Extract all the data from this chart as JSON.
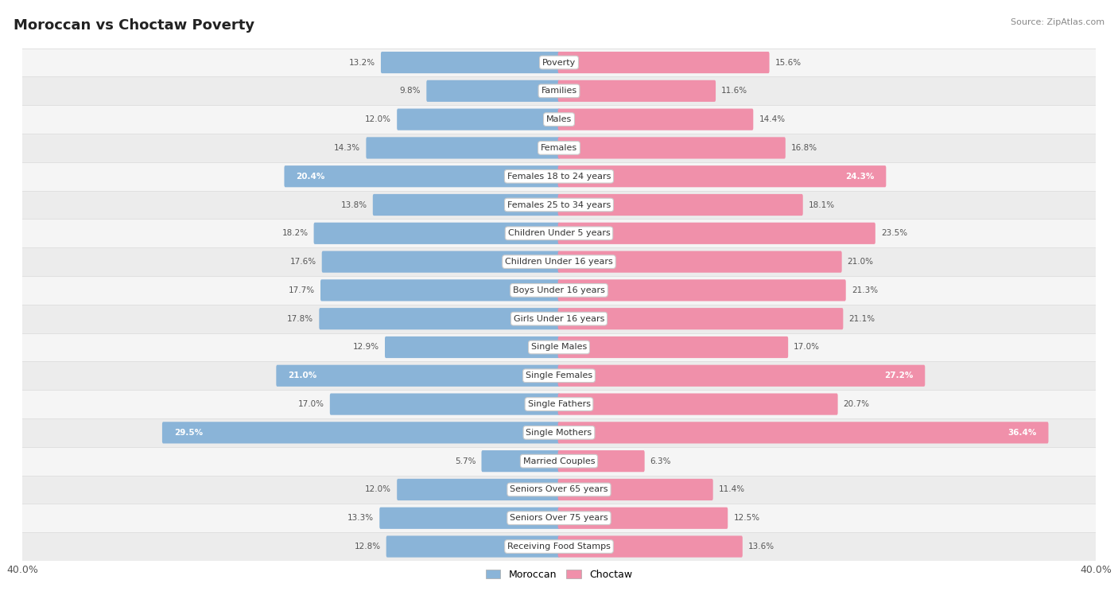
{
  "title": "Moroccan vs Choctaw Poverty",
  "source": "Source: ZipAtlas.com",
  "categories": [
    "Poverty",
    "Families",
    "Males",
    "Females",
    "Females 18 to 24 years",
    "Females 25 to 34 years",
    "Children Under 5 years",
    "Children Under 16 years",
    "Boys Under 16 years",
    "Girls Under 16 years",
    "Single Males",
    "Single Females",
    "Single Fathers",
    "Single Mothers",
    "Married Couples",
    "Seniors Over 65 years",
    "Seniors Over 75 years",
    "Receiving Food Stamps"
  ],
  "moroccan": [
    13.2,
    9.8,
    12.0,
    14.3,
    20.4,
    13.8,
    18.2,
    17.6,
    17.7,
    17.8,
    12.9,
    21.0,
    17.0,
    29.5,
    5.7,
    12.0,
    13.3,
    12.8
  ],
  "choctaw": [
    15.6,
    11.6,
    14.4,
    16.8,
    24.3,
    18.1,
    23.5,
    21.0,
    21.3,
    21.1,
    17.0,
    27.2,
    20.7,
    36.4,
    6.3,
    11.4,
    12.5,
    13.6
  ],
  "moroccan_color": "#8ab4d8",
  "choctaw_color": "#f090aa",
  "highlight_moroccan": [
    4,
    11,
    13
  ],
  "highlight_choctaw": [
    4,
    11,
    13
  ],
  "bar_height": 0.6,
  "axis_max": 40.0,
  "bg_color": "#ffffff",
  "row_even_color": "#f7f7f7",
  "row_odd_color": "#efefef",
  "label_color": "#555555",
  "highlight_label_color": "#ffffff",
  "separator_color": "#e0e0e0"
}
